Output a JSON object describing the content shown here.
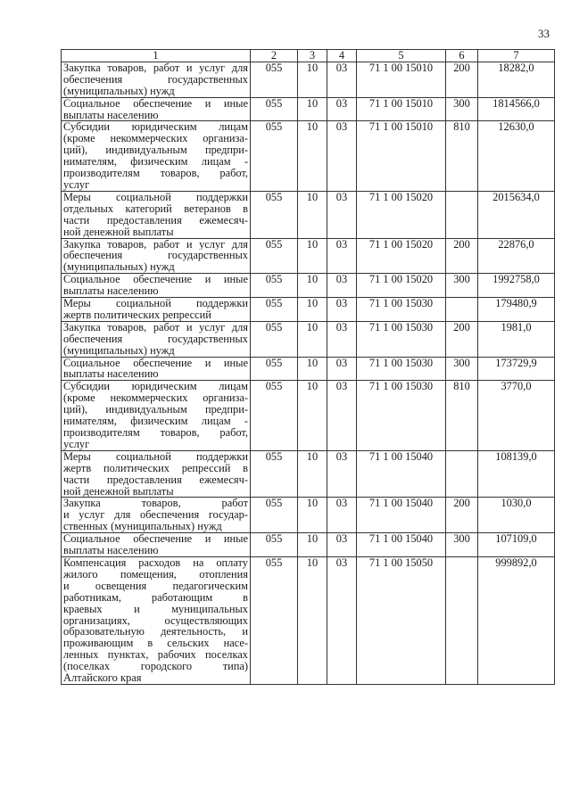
{
  "page_number": "33",
  "table": {
    "headers": [
      "1",
      "2",
      "3",
      "4",
      "5",
      "6",
      "7"
    ],
    "rows": [
      {
        "desc_lines": [
          "Закупка товаров, работ и услуг для",
          "обеспечения государственных",
          "(муниципальных) нужд"
        ],
        "c2": "055",
        "c3": "10",
        "c4": "03",
        "c5": "71 1 00 15010",
        "c6": "200",
        "c7": "18282,0"
      },
      {
        "desc_lines": [
          "Социальное обеспечение и иные",
          "выплаты населению"
        ],
        "c2": "055",
        "c3": "10",
        "c4": "03",
        "c5": "71 1 00 15010",
        "c6": "300",
        "c7": "1814566,0"
      },
      {
        "desc_lines": [
          "Субсидии юридическим лицам",
          "(кроме некоммерческих организа-",
          "ций), индивидуальным предпри-",
          "нимателям, физическим лицам -",
          "производителям товаров, работ,",
          "услуг"
        ],
        "c2": "055",
        "c3": "10",
        "c4": "03",
        "c5": "71 1 00 15010",
        "c6": "810",
        "c7": "12630,0"
      },
      {
        "desc_lines": [
          "Меры социальной поддержки",
          "отдельных категорий ветеранов в",
          "части предоставления ежемесяч-",
          "ной денежной выплаты"
        ],
        "c2": "055",
        "c3": "10",
        "c4": "03",
        "c5": "71 1 00 15020",
        "c6": "",
        "c7": "2015634,0"
      },
      {
        "desc_lines": [
          "Закупка товаров, работ и услуг для",
          "обеспечения государственных",
          "(муниципальных) нужд"
        ],
        "c2": "055",
        "c3": "10",
        "c4": "03",
        "c5": "71 1 00 15020",
        "c6": "200",
        "c7": "22876,0"
      },
      {
        "desc_lines": [
          "Социальное обеспечение и иные",
          "выплаты населению"
        ],
        "c2": "055",
        "c3": "10",
        "c4": "03",
        "c5": "71 1 00 15020",
        "c6": "300",
        "c7": "1992758,0"
      },
      {
        "desc_lines": [
          "Меры социальной поддержки",
          "жертв политических репрессий"
        ],
        "c2": "055",
        "c3": "10",
        "c4": "03",
        "c5": "71 1 00 15030",
        "c6": "",
        "c7": "179480,9"
      },
      {
        "desc_lines": [
          "Закупка товаров, работ и услуг для",
          "обеспечения государственных",
          "(муниципальных) нужд"
        ],
        "c2": "055",
        "c3": "10",
        "c4": "03",
        "c5": "71 1 00 15030",
        "c6": "200",
        "c7": "1981,0"
      },
      {
        "desc_lines": [
          "Социальное обеспечение и иные",
          "выплаты населению"
        ],
        "c2": "055",
        "c3": "10",
        "c4": "03",
        "c5": "71 1 00 15030",
        "c6": "300",
        "c7": "173729,9"
      },
      {
        "desc_lines": [
          "Субсидии юридическим лицам",
          "(кроме некоммерческих организа-",
          "ций), индивидуальным предпри-",
          "нимателям, физическим лицам -",
          "производителям товаров, работ,",
          "услуг"
        ],
        "c2": "055",
        "c3": "10",
        "c4": "03",
        "c5": "71 1 00 15030",
        "c6": "810",
        "c7": "3770,0"
      },
      {
        "desc_lines": [
          "Меры социальной поддержки",
          "жертв политических репрессий в",
          "части предоставления ежемесяч-",
          "ной денежной выплаты"
        ],
        "c2": "055",
        "c3": "10",
        "c4": "03",
        "c5": "71 1 00 15040",
        "c6": "",
        "c7": "108139,0"
      },
      {
        "desc_lines": [
          "Закупка товаров, работ",
          "и услуг для обеспечения государ-",
          "ственных (муниципальных) нужд"
        ],
        "c2": "055",
        "c3": "10",
        "c4": "03",
        "c5": "71 1 00 15040",
        "c6": "200",
        "c7": "1030,0"
      },
      {
        "desc_lines": [
          "Социальное обеспечение и иные",
          "выплаты населению"
        ],
        "c2": "055",
        "c3": "10",
        "c4": "03",
        "c5": "71 1 00 15040",
        "c6": "300",
        "c7": "107109,0"
      },
      {
        "desc_lines": [
          "Компенсация расходов на оплату",
          "жилого помещения, отопления",
          "и освещения педагогическим",
          "работникам, работающим в",
          "краевых и муниципальных",
          "организациях, осуществляющих",
          "образовательную деятельность, и",
          "проживающим в сельских насе-",
          "ленных пунктах, рабочих поселках",
          "(поселках городского типа)",
          "Алтайского края"
        ],
        "c2": "055",
        "c3": "10",
        "c4": "03",
        "c5": "71 1 00 15050",
        "c6": "",
        "c7": "999892,0"
      }
    ]
  }
}
